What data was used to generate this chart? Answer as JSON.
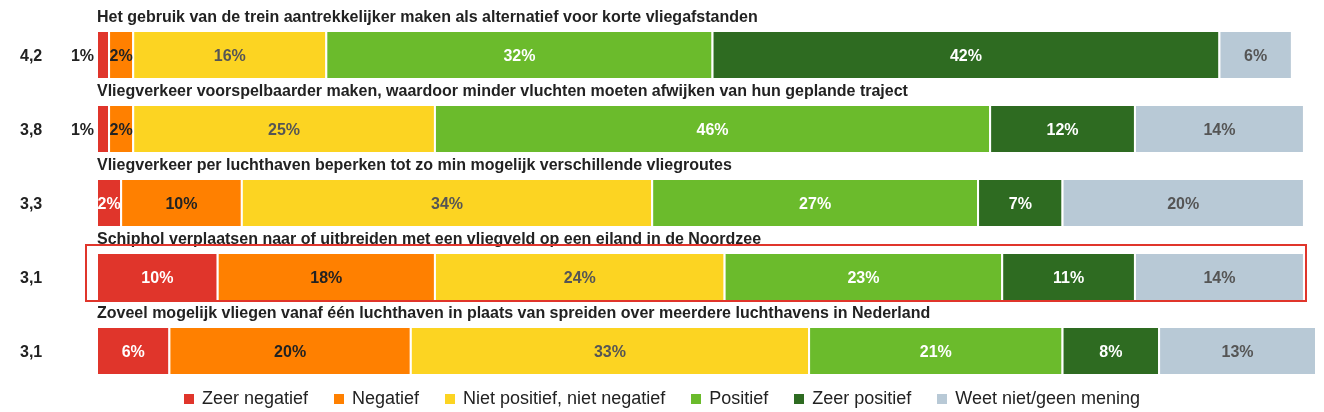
{
  "chart_data": {
    "type": "bar",
    "orientation": "horizontal",
    "stacked": true,
    "legend": "bottom",
    "grid": false,
    "categories": [
      "Het gebruik van de trein aantrekkelijker  maken als alternatief voor korte vliegafstanden",
      "Vliegverkeer voorspelbaarder maken, waardoor minder vluchten moeten afwijken  van hun geplande traject",
      "Vliegverkeer per luchthaven beperken tot zo min mogelijk verschillende vliegroutes",
      "Schiphol verplaatsen naar of uitbreiden met een vliegveld op een eiland in de Noordzee",
      "Zoveel mogelijk vliegen vanaf één luchthaven in plaats van spreiden over meerdere luchthavens in Nederland"
    ],
    "annotations": [
      "4,2",
      "3,8",
      "3,3",
      "3,1",
      "3,1"
    ],
    "series": [
      {
        "name": "Zeer negatief",
        "color": "#e0352b",
        "values": [
          1,
          1,
          2,
          10,
          6
        ],
        "value_labels": [
          "1%",
          "1%",
          "2%",
          "10%",
          "6%"
        ]
      },
      {
        "name": "Negatief",
        "color": "#ff8000",
        "values": [
          2,
          2,
          10,
          18,
          20
        ],
        "value_labels": [
          "2%",
          "2%",
          "10%",
          "18%",
          "20%"
        ]
      },
      {
        "name": "Niet positief, niet negatief",
        "color": "#fcd422",
        "values": [
          16,
          25,
          34,
          24,
          33
        ],
        "value_labels": [
          "16%",
          "25%",
          "34%",
          "24%",
          "33%"
        ]
      },
      {
        "name": "Positief",
        "color": "#6bbb2c",
        "values": [
          32,
          46,
          27,
          23,
          21
        ],
        "value_labels": [
          "32%",
          "46%",
          "27%",
          "23%",
          "21%"
        ]
      },
      {
        "name": "Zeer positief",
        "color": "#2e6b21",
        "values": [
          42,
          12,
          7,
          11,
          8
        ],
        "value_labels": [
          "42%",
          "12%",
          "7%",
          "11%",
          "8%"
        ]
      },
      {
        "name": "Weet niet/geen mening",
        "color": "#b8c9d6",
        "values": [
          6,
          14,
          20,
          14,
          13
        ],
        "value_labels": [
          "6%",
          "14%",
          "20%",
          "14%",
          "13%"
        ]
      }
    ]
  }
}
